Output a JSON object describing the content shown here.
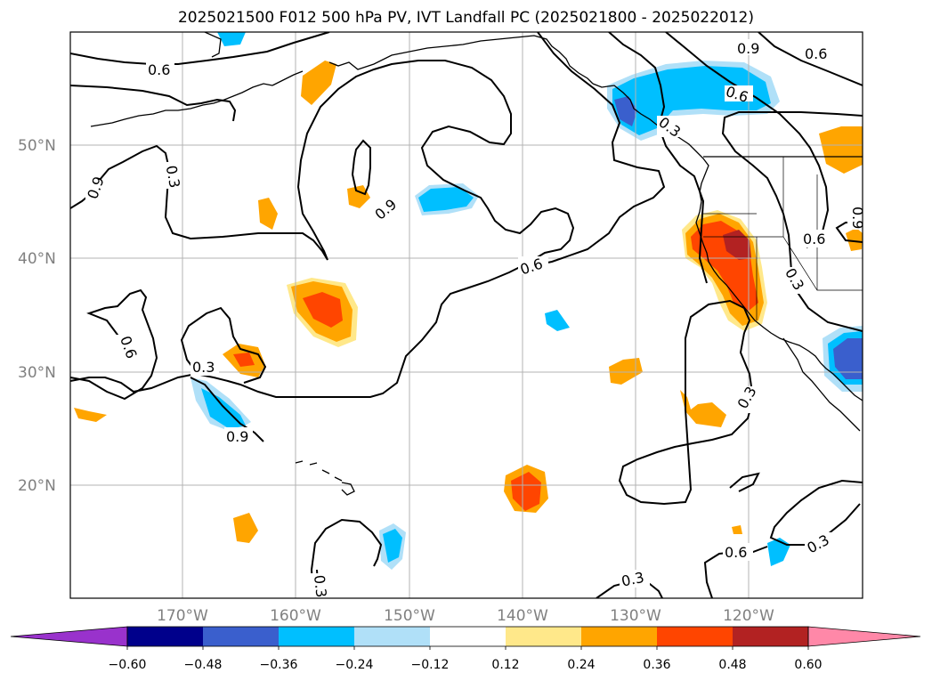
{
  "title": "2025021500 F012 500 hPa PV, IVT Landfall PC (2025021800 - 2025022012)",
  "lat_labels": [
    "50°N",
    "40°N",
    "30°N",
    "20°N"
  ],
  "lon_labels": [
    "170°W",
    "160°W",
    "150°W",
    "140°W",
    "130°W",
    "120°W"
  ],
  "contour_labels": [
    "0.6",
    "0.9",
    "0.6",
    "0.6",
    "0.3",
    "0.9",
    "0.9",
    "0.6",
    "0.6",
    "0.3",
    "0.6",
    "0.3",
    "0.3",
    "0.9",
    "0.6",
    "0.3",
    "0.3",
    "0.3",
    "0.3",
    "0.9"
  ],
  "colorbar": {
    "tick_labels": [
      "−0.60",
      "−0.48",
      "−0.36",
      "−0.24",
      "−0.12",
      "0.12",
      "0.24",
      "0.36",
      "0.48",
      "0.60"
    ],
    "colors": [
      "#9932cc",
      "#00008b",
      "#3a5fcd",
      "#00bfff",
      "#b0e0f8",
      "#ffffff",
      "#ffe88a",
      "#ffa500",
      "#ff4500",
      "#b22222",
      "#ff88a8"
    ]
  }
}
